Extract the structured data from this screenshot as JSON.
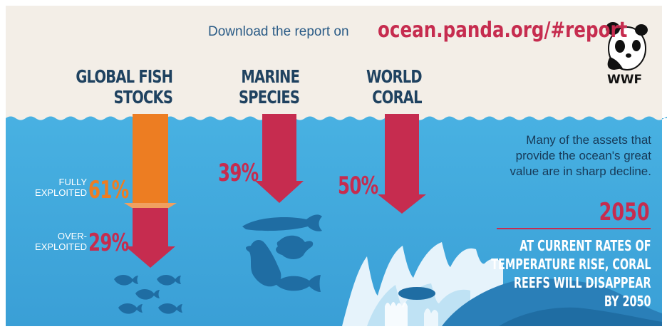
{
  "header": {
    "download_text": "Download the report on",
    "url": "ocean.panda.org/#report",
    "logo_text": "WWF"
  },
  "columns": [
    {
      "line1": "GLOBAL FISH",
      "line2": "STOCKS"
    },
    {
      "line1": "MARINE",
      "line2": "SPECIES"
    },
    {
      "line1": "WORLD",
      "line2": "CORAL"
    }
  ],
  "fish_stocks": {
    "fully_label_1": "FULLY",
    "fully_label_2": "EXPLOITED",
    "fully_value": "61%",
    "over_label_1": "OVER-",
    "over_label_2": "EXPLOITED",
    "over_value": "29%"
  },
  "marine_species": {
    "value": "39%"
  },
  "world_coral": {
    "value": "50%"
  },
  "sidebar": {
    "summary_1": "Many of the assets that",
    "summary_2": "provide the ocean's great",
    "summary_3": "value are in sharp decline.",
    "year": "2050",
    "warning_1": "AT CURRENT RATES OF",
    "warning_2": "TEMPERATURE RISE, CORAL",
    "warning_3": "REEFS WILL DISAPPEAR",
    "warning_4": "BY 2050"
  },
  "colors": {
    "sand": "#f3eee7",
    "ocean": "#3fa9dc",
    "orange_arrow": "#ed7d22",
    "red_arrow": "#c62c4f",
    "navy_text": "#1f4260",
    "url_red": "#c62c4f"
  }
}
